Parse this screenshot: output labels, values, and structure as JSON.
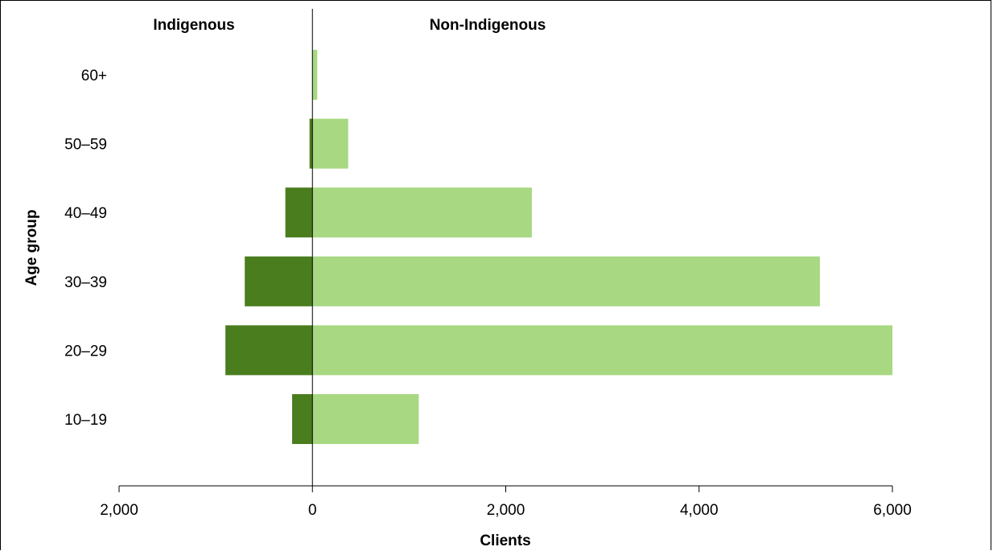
{
  "chart_data": {
    "type": "bar",
    "orientation": "horizontal",
    "layout": "population-pyramid",
    "categories": [
      "60+",
      "50–59",
      "40–49",
      "30–39",
      "20–29",
      "10–19"
    ],
    "series": [
      {
        "name": "Indigenous",
        "color": "#4a7d1e",
        "values": [
          0,
          30,
          280,
          700,
          900,
          210
        ]
      },
      {
        "name": "Non-Indigenous",
        "color": "#a8d882",
        "values": [
          50,
          370,
          2270,
          5250,
          6000,
          1100
        ]
      }
    ],
    "xlabel": "Clients",
    "ylabel": "Age group",
    "xlim": [
      -2000,
      6000
    ],
    "xticks": [
      -2000,
      0,
      2000,
      4000,
      6000
    ],
    "xtick_labels": [
      "2,000",
      "0",
      "2,000",
      "4,000",
      "6,000"
    ],
    "grid": false
  }
}
